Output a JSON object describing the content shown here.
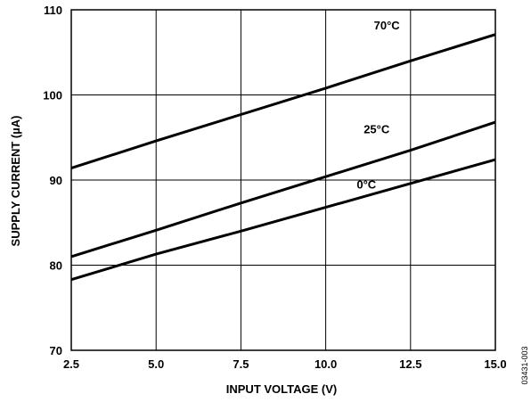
{
  "chart_data": {
    "type": "line",
    "xlabel": "INPUT VOLTAGE (V)",
    "ylabel": "SUPPLY CURRENT (µA)",
    "xlim": [
      2.5,
      15.0
    ],
    "ylim": [
      70,
      110
    ],
    "x_ticks": [
      "2.5",
      "5.0",
      "7.5",
      "10.0",
      "12.5",
      "15.0"
    ],
    "y_ticks": [
      "70",
      "80",
      "90",
      "100",
      "110"
    ],
    "grid": true,
    "series": [
      {
        "name": "70°C",
        "x": [
          2.5,
          5.0,
          7.5,
          10.0,
          12.5,
          15.0
        ],
        "values": [
          91.4,
          94.6,
          97.7,
          100.8,
          104.0,
          107.1
        ]
      },
      {
        "name": "25°C",
        "x": [
          2.5,
          5.0,
          7.5,
          10.0,
          12.5,
          15.0
        ],
        "values": [
          81.0,
          84.1,
          87.3,
          90.4,
          93.5,
          96.8
        ]
      },
      {
        "name": "0°C",
        "x": [
          2.5,
          5.0,
          7.5,
          10.0,
          12.5,
          15.0
        ],
        "values": [
          78.3,
          81.3,
          84.0,
          86.8,
          89.6,
          92.4
        ]
      }
    ],
    "figure_id": "03431-003"
  }
}
